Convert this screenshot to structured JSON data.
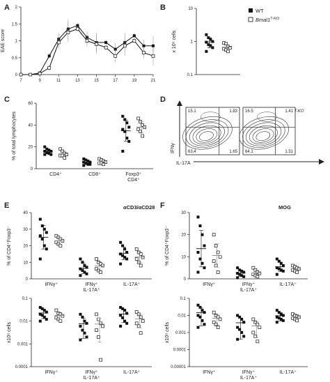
{
  "panel_letters": {
    "A": "A",
    "B": "B",
    "C": "C",
    "D": "D",
    "E": "E",
    "F": "F"
  },
  "legend": {
    "wt": "WT",
    "ko_base": "Bmal1",
    "ko_sup": "T-KO"
  },
  "colors": {
    "wt": "#111111",
    "ko": "#ffffff",
    "line": "#111111",
    "grid": "#222222",
    "ko_line": "#888888"
  },
  "chart_data": [
    {
      "id": "A",
      "type": "line",
      "ylabel": "EAE score",
      "x": [
        7,
        8,
        9,
        10,
        11,
        12,
        13,
        14,
        15,
        16,
        17,
        18,
        19,
        20,
        21
      ],
      "xticks": [
        "7",
        "9",
        "11",
        "13",
        "15",
        "17",
        "19",
        "21"
      ],
      "ylim": [
        0,
        2
      ],
      "yticks": [
        "0",
        "0.5",
        "1",
        "1.5",
        "2"
      ],
      "series": [
        {
          "name": "WT",
          "values": [
            0,
            0,
            0.05,
            0.55,
            1.05,
            1.35,
            1.45,
            1.1,
            0.95,
            0.95,
            0.75,
            0.95,
            1.15,
            0.85,
            0.85
          ]
        },
        {
          "name": "Bmal1 T-KO",
          "values": [
            0,
            0,
            0.03,
            0.2,
            0.95,
            1.25,
            1.35,
            1.0,
            0.9,
            0.8,
            0.55,
            0.85,
            1.0,
            0.65,
            0.55
          ]
        }
      ]
    },
    {
      "id": "B",
      "type": "scatter",
      "ylabel": "x 10⁶ cells",
      "yscale": "log",
      "ylim": [
        0.1,
        10
      ],
      "yticks": [
        "0.1",
        "1",
        "10"
      ],
      "groups": [
        {
          "wt": [
            1.6,
            1.3,
            1.15,
            1.0,
            0.95,
            0.8,
            0.75,
            0.65,
            0.5
          ],
          "ko": [
            0.9,
            0.85,
            0.7,
            0.65,
            0.6,
            0.55,
            0.5
          ]
        }
      ]
    },
    {
      "id": "C",
      "type": "scatter",
      "ylabel": "% of total lymphocytes",
      "ylim": [
        0,
        60
      ],
      "yticks": [
        "0",
        "20",
        "40",
        "60"
      ],
      "categories": [
        "CD4⁺",
        "CD8⁺",
        "Foxp3⁺ CD4⁺"
      ],
      "groups": [
        {
          "wt": [
            20,
            18,
            17,
            16,
            16,
            15,
            14,
            13,
            13
          ],
          "ko": [
            18,
            16,
            14,
            13,
            12,
            12,
            10
          ]
        },
        {
          "wt": [
            9,
            8,
            7,
            6,
            6,
            5,
            4,
            4,
            3
          ],
          "ko": [
            9,
            8,
            7,
            6,
            5,
            5,
            4
          ]
        },
        {
          "wt": [
            48,
            45,
            42,
            38,
            36,
            34,
            28,
            25,
            16
          ],
          "ko": [
            46,
            43,
            40,
            38,
            36,
            34,
            30
          ]
        }
      ]
    },
    {
      "id": "D",
      "type": "contour",
      "title_left": "WT",
      "title_right": "Bmal1 T-KO",
      "xlabel": "IL-17A",
      "ylabel": "IFNγ",
      "quads_left": [
        "15.1",
        "1.83",
        "63.4",
        "1.65"
      ],
      "quads_right": [
        "16.5",
        "1.41",
        "64.1",
        "1.51"
      ]
    },
    {
      "id": "E1",
      "type": "scatter",
      "ylabel": "% of CD4⁺Foxp3⁻",
      "ylim": [
        0,
        40
      ],
      "yticks": [
        "0",
        "10",
        "20",
        "30",
        "40"
      ],
      "categories": [
        "IFNγ⁺",
        "IFNγ⁺ IL-17A⁺",
        "IL-17A⁺"
      ],
      "annotation": "αCD3/αCD28",
      "groups": [
        {
          "wt": [
            36,
            32,
            30,
            28,
            26,
            24,
            20,
            18,
            12
          ],
          "ko": [
            26,
            25,
            24,
            23,
            22,
            21,
            20
          ]
        },
        {
          "wt": [
            12,
            10,
            8,
            7,
            6,
            5,
            4,
            3,
            2
          ],
          "ko": [
            12,
            10,
            9,
            8,
            6,
            5,
            4
          ]
        },
        {
          "wt": [
            22,
            20,
            18,
            16,
            15,
            14,
            13,
            12,
            9
          ],
          "ko": [
            18,
            16,
            15,
            13,
            12,
            10,
            8
          ]
        }
      ]
    },
    {
      "id": "E2",
      "type": "scatter",
      "ylabel": "x10⁶ cells",
      "yscale": "log",
      "ylim": [
        0.0001,
        0.1
      ],
      "yticks": [
        "0.0001",
        "0.001",
        "0.01",
        "0.1"
      ],
      "categories": [
        "IFNγ⁺",
        "IFNγ⁺ IL-17A⁺",
        "IL-17A⁺"
      ],
      "groups": [
        {
          "wt": [
            0.04,
            0.035,
            0.03,
            0.025,
            0.02,
            0.018,
            0.015,
            0.012,
            0.01
          ],
          "ko": [
            0.03,
            0.022,
            0.02,
            0.017,
            0.014,
            0.012,
            0.01
          ]
        },
        {
          "wt": [
            0.02,
            0.015,
            0.01,
            0.008,
            0.006,
            0.004,
            0.003,
            0.002,
            0.0015
          ],
          "ko": [
            0.02,
            0.012,
            0.008,
            0.006,
            0.004,
            0.002,
            0.0002
          ]
        },
        {
          "wt": [
            0.04,
            0.035,
            0.03,
            0.022,
            0.018,
            0.014,
            0.01,
            0.008,
            0.006
          ],
          "ko": [
            0.025,
            0.02,
            0.015,
            0.01,
            0.008,
            0.006,
            0.003
          ]
        }
      ]
    },
    {
      "id": "F1",
      "type": "scatter",
      "ylabel": "% of CD4⁺Foxp3⁻",
      "ylim": [
        0,
        30
      ],
      "yticks": [
        "0",
        "10",
        "20",
        "30"
      ],
      "categories": [
        "IFNγ⁺",
        "IFNγ⁺ IL-17A⁺",
        "IL-17A⁺"
      ],
      "annotation": "MOG",
      "groups": [
        {
          "wt": [
            28,
            24,
            20,
            15,
            12,
            9,
            7,
            5,
            3
          ],
          "ko": [
            20,
            15,
            12,
            10,
            8,
            6,
            3
          ]
        },
        {
          "wt": [
            5,
            4,
            3.5,
            3,
            2.5,
            2,
            1.5,
            1,
            0.5
          ],
          "ko": [
            5,
            4,
            3,
            2.5,
            2,
            1.5,
            1
          ]
        },
        {
          "wt": [
            9,
            8,
            7,
            6,
            5,
            4.5,
            4,
            3.5,
            2
          ],
          "ko": [
            6,
            5.5,
            5,
            4.5,
            4,
            3.5,
            3
          ]
        }
      ]
    },
    {
      "id": "F2",
      "type": "scatter",
      "ylabel": "x10⁶ cells",
      "yscale": "log",
      "ylim": [
        1e-05,
        0.1
      ],
      "yticks": [
        "0.00001",
        "0.0001",
        "0.001",
        "0.01",
        "0.1"
      ],
      "categories": [
        "IFNγ⁺",
        "IFNγ⁺ IL-17A⁺",
        "IL-17A⁺"
      ],
      "groups": [
        {
          "wt": [
            0.04,
            0.03,
            0.02,
            0.015,
            0.01,
            0.008,
            0.005,
            0.003,
            0.002
          ],
          "ko": [
            0.015,
            0.01,
            0.008,
            0.006,
            0.004,
            0.003,
            0.002
          ]
        },
        {
          "wt": [
            0.01,
            0.008,
            0.006,
            0.004,
            0.002,
            0.0015,
            0.001,
            0.0006,
            0.0004
          ],
          "ko": [
            0.006,
            0.004,
            0.003,
            0.002,
            0.001,
            0.0006,
            0.0003
          ]
        },
        {
          "wt": [
            0.02,
            0.015,
            0.012,
            0.01,
            0.008,
            0.007,
            0.006,
            0.005,
            0.004
          ],
          "ko": [
            0.012,
            0.01,
            0.009,
            0.008,
            0.007,
            0.006,
            0.005
          ]
        }
      ]
    }
  ]
}
